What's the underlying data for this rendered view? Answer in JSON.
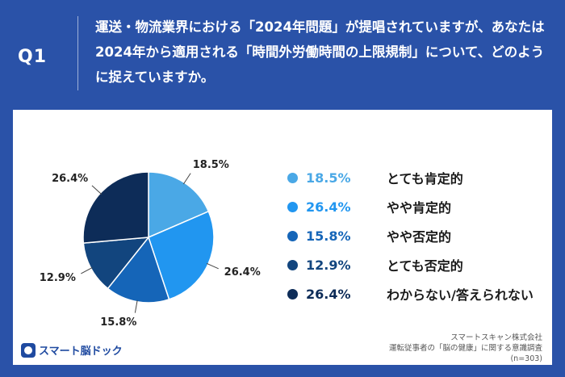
{
  "header": {
    "question_label": "Q1",
    "question_text": "運送・物流業界における「2024年問題」が提唱されていますが、あなたは2024年から適用される「時間外労働時間の上限規制」について、どのように捉えていますか。"
  },
  "chart_data": {
    "type": "pie",
    "slices": [
      {
        "label": "とても肯定的",
        "value": 18.5,
        "display": "18.5%",
        "color": "#4aa8e6"
      },
      {
        "label": "やや肯定的",
        "value": 26.4,
        "display": "26.4%",
        "color": "#2196f0"
      },
      {
        "label": "やや否定的",
        "value": 15.8,
        "display": "15.8%",
        "color": "#1565b8"
      },
      {
        "label": "とても否定的",
        "value": 12.9,
        "display": "12.9%",
        "color": "#12457e"
      },
      {
        "label": "わからない/答えられない",
        "value": 26.4,
        "display": "26.4%",
        "color": "#0d2c58"
      }
    ],
    "start": "12 o'clock",
    "direction": "clockwise",
    "legend_position": "right"
  },
  "footer": {
    "logo_text": "スマート脳ドック",
    "source_lines": [
      "スマートスキャン株式会社",
      "運転従事者の「脳の健康」に関する意識調査",
      "(n=303)"
    ]
  }
}
